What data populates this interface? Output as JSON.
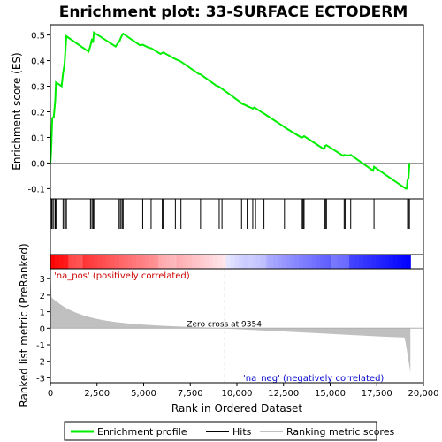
{
  "chart_data": {
    "type": "line",
    "title": "Enrichment plot: 33-SURFACE ECTODERM",
    "xlabel": "Rank in Ordered Dataset",
    "ylabel_top": "Enrichment score (ES)",
    "ylabel_bottom": "Ranked list metric (PreRanked)",
    "xlim": [
      0,
      20000
    ],
    "es_ylim": [
      -0.14,
      0.54
    ],
    "metric_ylim": [
      -3.3,
      3.6
    ],
    "x_ticks": [
      0,
      2500,
      5000,
      7500,
      10000,
      12500,
      15000,
      17500,
      20000
    ],
    "x_tick_labels": [
      "0",
      "2,500",
      "5,000",
      "7,500",
      "10,000",
      "12,500",
      "15,000",
      "17,500",
      "20,000"
    ],
    "es_ticks": [
      -0.1,
      0.0,
      0.1,
      0.2,
      0.3,
      0.4,
      0.5
    ],
    "es_tick_labels": [
      "-0.1",
      "0.0",
      "0.1",
      "0.2",
      "0.3",
      "0.4",
      "0.5"
    ],
    "metric_ticks": [
      -3,
      -2,
      -1,
      0,
      1,
      2,
      3
    ],
    "metric_tick_labels": [
      "-3",
      "-2",
      "-1",
      "0",
      "1",
      "2",
      "3"
    ],
    "n_genes": 19300,
    "zero_cross": 9354,
    "zero_cross_label": "Zero cross at 9354",
    "pos_label": "'na_pos' (positively correlated)",
    "neg_label": "'na_neg' (negatively correlated)",
    "series": [
      {
        "name": "Enrichment profile",
        "color": "#00ee00",
        "x": [
          0,
          30,
          60,
          100,
          180,
          260,
          300,
          600,
          680,
          760,
          800,
          860,
          2050,
          2150,
          2230,
          2290,
          2330,
          3500,
          3640,
          3700,
          3780,
          3850,
          3900,
          4800,
          4950,
          5300,
          5400,
          5900,
          6000,
          6050,
          6650,
          6700,
          6900,
          7000,
          7950,
          8050,
          8900,
          9050,
          9200,
          10200,
          10250,
          10500,
          10550,
          10800,
          10850,
          10950,
          11000,
          11400,
          11450,
          12500,
          12550,
          13400,
          13500,
          13550,
          13600,
          14650,
          14700,
          14750,
          14800,
          15700,
          15750,
          15800,
          16050,
          16100,
          17300,
          17350,
          19050,
          19100,
          19150,
          19200,
          19250
        ],
        "y": [
          0.0,
          0.03,
          0.09,
          0.175,
          0.18,
          0.245,
          0.315,
          0.3,
          0.35,
          0.385,
          0.435,
          0.495,
          0.435,
          0.46,
          0.485,
          0.47,
          0.51,
          0.455,
          0.47,
          0.475,
          0.49,
          0.5,
          0.505,
          0.46,
          0.462,
          0.45,
          0.449,
          0.426,
          0.43,
          0.432,
          0.408,
          0.406,
          0.4,
          0.396,
          0.348,
          0.346,
          0.302,
          0.298,
          0.29,
          0.237,
          0.232,
          0.225,
          0.222,
          0.215,
          0.212,
          0.218,
          0.214,
          0.195,
          0.193,
          0.143,
          0.14,
          0.102,
          0.1,
          0.102,
          0.105,
          0.055,
          0.06,
          0.068,
          0.07,
          0.028,
          0.032,
          0.03,
          0.03,
          0.032,
          -0.03,
          -0.015,
          -0.1,
          -0.1,
          -0.065,
          -0.06,
          0.0
        ]
      },
      {
        "name": "Hits",
        "color": "#000000",
        "positions": [
          60,
          100,
          180,
          260,
          300,
          680,
          760,
          800,
          860,
          2150,
          2230,
          2290,
          2330,
          3640,
          3700,
          3780,
          3850,
          3900,
          4950,
          5400,
          6000,
          6050,
          6700,
          7000,
          8050,
          9050,
          9200,
          10250,
          10550,
          10850,
          11000,
          11450,
          12550,
          13500,
          13550,
          13600,
          14700,
          14750,
          14800,
          15750,
          15800,
          16100,
          17350,
          19150,
          19200,
          19250
        ]
      },
      {
        "name": "Ranking metric scores",
        "color": "#c0c0c0"
      }
    ]
  },
  "legend": {
    "entries": [
      {
        "label": "Enrichment profile",
        "color": "#00ee00"
      },
      {
        "label": "Hits",
        "color": "#000000"
      },
      {
        "label": "Ranking metric scores",
        "color": "#c0c0c0"
      }
    ]
  }
}
